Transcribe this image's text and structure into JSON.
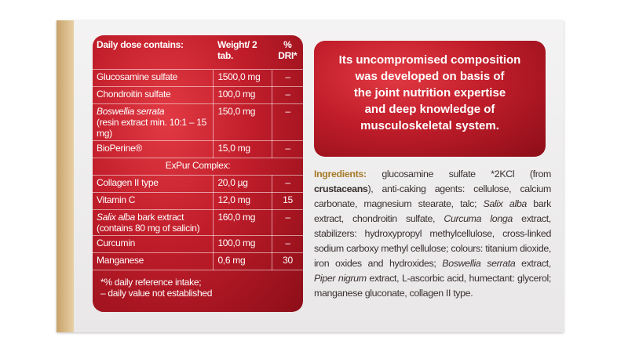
{
  "table": {
    "header": [
      "Daily dose contains:",
      "Weight/ 2 tab.",
      "% DRI*"
    ],
    "rows": [
      [
        "Glucosamine sulfate",
        "1500,0 mg",
        "–"
      ],
      [
        "Chondroitin sulfate",
        "100,0 mg",
        "–"
      ],
      [
        [
          "Boswellia serrata",
          "(resin extract min. 10:1 – 15 mg)"
        ],
        "150,0 mg",
        "–"
      ],
      [
        "BioPerine®",
        "15,0 mg",
        "–"
      ],
      [
        "ExPur Complex:"
      ],
      [
        "Collagen II type",
        "20,0 µg",
        "–"
      ],
      [
        "Vitamin C",
        "12,0 mg",
        "15"
      ],
      [
        [
          "Salix alba",
          " bark extract (contains 80 mg of salicin)"
        ],
        "160,0 mg",
        "–"
      ],
      [
        "Curcumin",
        "100,0 mg",
        "–"
      ],
      [
        "Manganese",
        "0,6 mg",
        "30"
      ]
    ],
    "footnotes": [
      "*% daily reference intake;",
      "– daily value not established"
    ]
  },
  "claim": [
    "Its uncompromised composition",
    "was developed on basis of",
    "the joint nutrition expertise",
    "and deep knowledge of",
    "musculoskeletal system."
  ],
  "ingredients": [
    "Ingredients:",
    " glucosamine sulfate *2KCl (from ",
    "crustaceans",
    "), anti-caking agents: cellulose, calcium carbonate, magnesium stearate, talc; ",
    "Salix alba",
    " bark extract, chondroitin sulfate, ",
    "Curcuma longa",
    " extract, stabilizers: hydroxypropyl methylcellulose, cross-linked sodium carboxy methyl cellulose; colours: titanium dioxide, iron oxides and hydroxides; ",
    "Boswellia serrata",
    " extract, ",
    "Piper nigrum",
    " extract, L-ascorbic acid, humectant: glycerol; manganese gluconate, collagen II type."
  ]
}
